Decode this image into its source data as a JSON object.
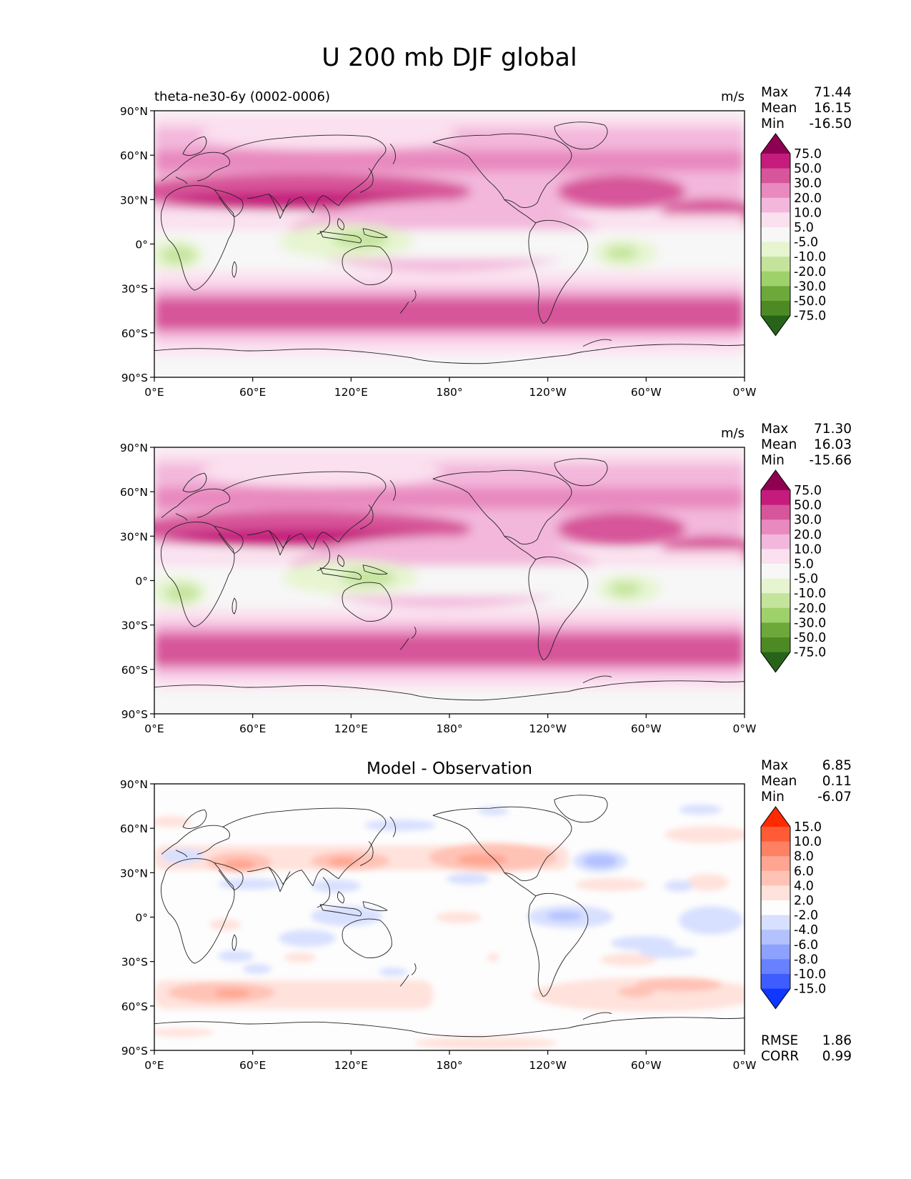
{
  "figure": {
    "title": "U 200 mb DJF global"
  },
  "chart_data": [
    {
      "type": "heatmap",
      "name": "test",
      "subtitle_left": "theta-ne30-6y (0002-0006)",
      "units": "m/s",
      "stats": {
        "max_label": "Max",
        "max": "71.44",
        "mean_label": "Mean",
        "mean": "16.15",
        "min_label": "Min",
        "min": "-16.50"
      },
      "x_ticks": [
        "0°E",
        "60°E",
        "120°E",
        "180°",
        "120°W",
        "60°W",
        "0°W"
      ],
      "y_ticks": [
        "90°N",
        "60°N",
        "30°N",
        "0°",
        "30°S",
        "60°S",
        "90°S"
      ],
      "xlim": [
        0,
        360
      ],
      "ylim": [
        -90,
        90
      ],
      "colorbar": {
        "levels": [
          "75.0",
          "50.0",
          "30.0",
          "20.0",
          "10.0",
          "5.0",
          "-5.0",
          "-10.0",
          "-20.0",
          "-30.0",
          "-50.0",
          "-75.0"
        ],
        "colors": [
          "#8e0152",
          "#c51b7d",
          "#d7559a",
          "#e889bf",
          "#f3b7dc",
          "#fbe0ef",
          "#f7f7f7",
          "#e6f5d0",
          "#c4e49b",
          "#9fd16a",
          "#6ca93a",
          "#4d8a24",
          "#276419"
        ]
      }
    },
    {
      "type": "heatmap",
      "name": "reference",
      "subtitle_left": "",
      "units": "m/s",
      "stats": {
        "max_label": "Max",
        "max": "71.30",
        "mean_label": "Mean",
        "mean": "16.03",
        "min_label": "Min",
        "min": "-15.66"
      },
      "x_ticks": [
        "0°E",
        "60°E",
        "120°E",
        "180°",
        "120°W",
        "60°W",
        "0°W"
      ],
      "y_ticks": [
        "90°N",
        "60°N",
        "30°N",
        "0°",
        "30°S",
        "60°S",
        "90°S"
      ],
      "xlim": [
        0,
        360
      ],
      "ylim": [
        -90,
        90
      ],
      "colorbar": {
        "levels": [
          "75.0",
          "50.0",
          "30.0",
          "20.0",
          "10.0",
          "5.0",
          "-5.0",
          "-10.0",
          "-20.0",
          "-30.0",
          "-50.0",
          "-75.0"
        ],
        "colors": [
          "#8e0152",
          "#c51b7d",
          "#d7559a",
          "#e889bf",
          "#f3b7dc",
          "#fbe0ef",
          "#f7f7f7",
          "#e6f5d0",
          "#c4e49b",
          "#9fd16a",
          "#6ca93a",
          "#4d8a24",
          "#276419"
        ]
      }
    },
    {
      "type": "heatmap",
      "name": "difference",
      "subtitle_center": "Model - Observation",
      "units": "",
      "stats": {
        "max_label": "Max",
        "max": "6.85",
        "mean_label": "Mean",
        "mean": "0.11",
        "min_label": "Min",
        "min": "-6.07"
      },
      "metrics": {
        "rmse_label": "RMSE",
        "rmse": "1.86",
        "corr_label": "CORR",
        "corr": "0.99"
      },
      "x_ticks": [
        "0°E",
        "60°E",
        "120°E",
        "180°",
        "120°W",
        "60°W",
        "0°W"
      ],
      "y_ticks": [
        "90°N",
        "60°N",
        "30°N",
        "0°",
        "30°S",
        "60°S",
        "90°S"
      ],
      "xlim": [
        0,
        360
      ],
      "ylim": [
        -90,
        90
      ],
      "colorbar": {
        "levels": [
          "15.0",
          "10.0",
          "8.0",
          "6.0",
          "4.0",
          "2.0",
          "-2.0",
          "-4.0",
          "-6.0",
          "-8.0",
          "-10.0",
          "-15.0"
        ],
        "colors": [
          "#ff2a00",
          "#ff5b36",
          "#ff8164",
          "#ffa591",
          "#ffc3b6",
          "#ffe2dc",
          "#fdfdfd",
          "#d8e0ff",
          "#b3c1ff",
          "#8da1ff",
          "#6781ff",
          "#3e5cff",
          "#0f37ff"
        ]
      }
    }
  ]
}
